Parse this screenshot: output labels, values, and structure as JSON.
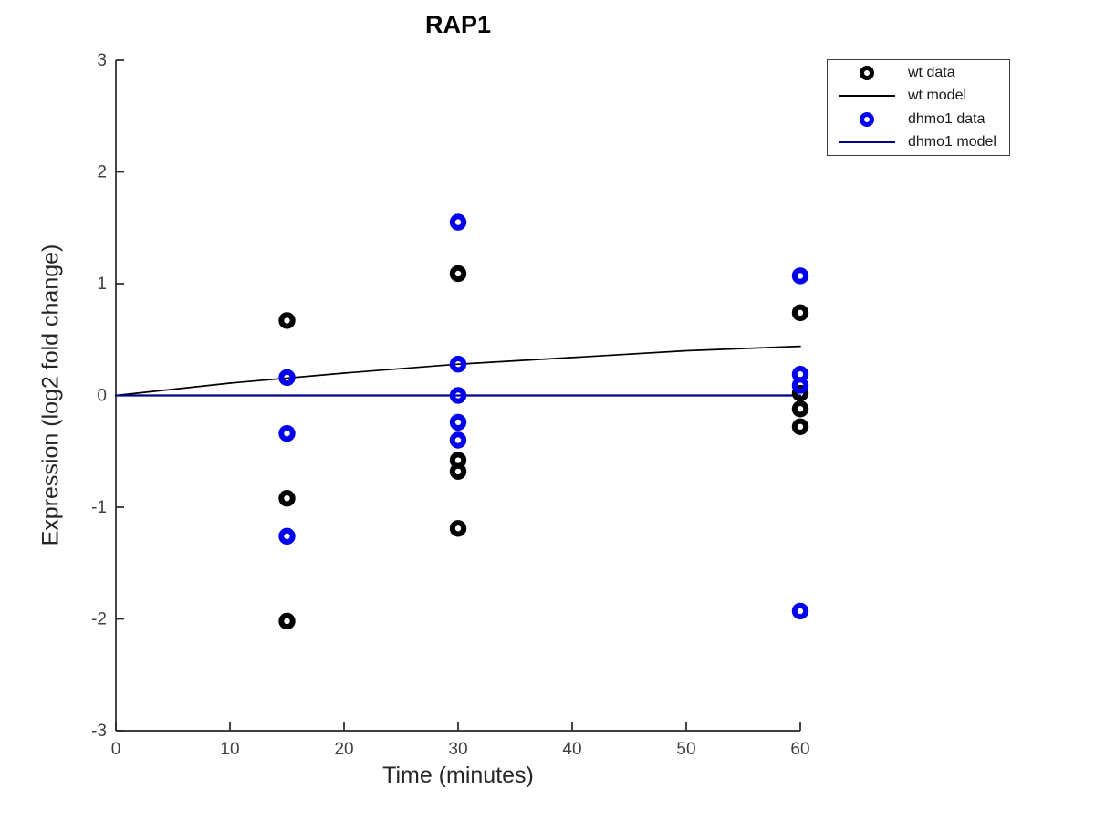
{
  "chart_data": {
    "type": "scatter",
    "title": "RAP1",
    "xlabel": "Time (minutes)",
    "ylabel": "Expression (log2 fold change)",
    "xlim": [
      0,
      60
    ],
    "ylim": [
      -3,
      3
    ],
    "xticks": [
      0,
      10,
      20,
      30,
      40,
      50,
      60
    ],
    "yticks": [
      3,
      2,
      1,
      0,
      -1,
      -2,
      -3
    ],
    "grid": false,
    "legend_position": "outside-top-right",
    "axis_color": "#262626",
    "series": [
      {
        "name": "wt data",
        "type": "scatter",
        "marker": "o",
        "color": "#000000",
        "points": [
          {
            "x": 15,
            "y": 0.67
          },
          {
            "x": 15,
            "y": -0.92
          },
          {
            "x": 15,
            "y": -2.02
          },
          {
            "x": 30,
            "y": 1.09
          },
          {
            "x": 30,
            "y": -0.58
          },
          {
            "x": 30,
            "y": -0.68
          },
          {
            "x": 30,
            "y": -1.19
          },
          {
            "x": 60,
            "y": 0.74
          },
          {
            "x": 60,
            "y": 0.02
          },
          {
            "x": 60,
            "y": -0.12
          },
          {
            "x": 60,
            "y": -0.28
          }
        ]
      },
      {
        "name": "wt model",
        "type": "line",
        "color": "#000000",
        "points": [
          {
            "x": 0,
            "y": 0
          },
          {
            "x": 10,
            "y": 0.11
          },
          {
            "x": 20,
            "y": 0.2
          },
          {
            "x": 30,
            "y": 0.28
          },
          {
            "x": 40,
            "y": 0.34
          },
          {
            "x": 50,
            "y": 0.4
          },
          {
            "x": 60,
            "y": 0.44
          }
        ]
      },
      {
        "name": "dhmo1 data",
        "type": "scatter",
        "marker": "o",
        "color": "#0000ee",
        "points": [
          {
            "x": 15,
            "y": 0.16
          },
          {
            "x": 15,
            "y": -0.34
          },
          {
            "x": 15,
            "y": -1.26
          },
          {
            "x": 30,
            "y": 1.55
          },
          {
            "x": 30,
            "y": 0.28
          },
          {
            "x": 30,
            "y": 0.0
          },
          {
            "x": 30,
            "y": -0.24
          },
          {
            "x": 30,
            "y": -0.4
          },
          {
            "x": 60,
            "y": 1.07
          },
          {
            "x": 60,
            "y": 0.19
          },
          {
            "x": 60,
            "y": 0.09
          },
          {
            "x": 60,
            "y": -1.93
          }
        ]
      },
      {
        "name": "dhmo1 model",
        "type": "line",
        "color": "#00008b",
        "points": [
          {
            "x": 0,
            "y": 0
          },
          {
            "x": 60,
            "y": 0
          }
        ]
      }
    ]
  },
  "legend": {
    "items": [
      {
        "label": "wt data",
        "glyph": "marker",
        "color": "#000000"
      },
      {
        "label": "wt model",
        "glyph": "line",
        "color": "#000000"
      },
      {
        "label": "dhmo1 data",
        "glyph": "marker",
        "color": "#0000ee"
      },
      {
        "label": "dhmo1 model",
        "glyph": "line",
        "color": "#00008b"
      }
    ]
  }
}
